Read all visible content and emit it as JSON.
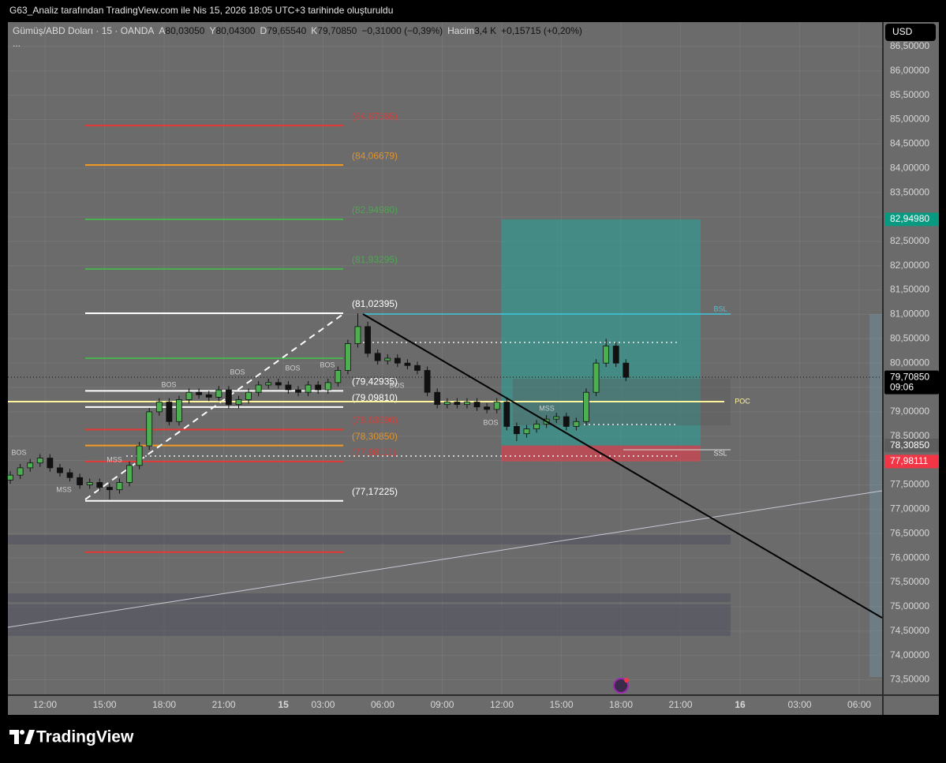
{
  "header": {
    "text": "G63_Analiz tarafından TradingView.com ile Nis 15, 2026 18:05 UTC+3 tarihinde oluşturuldu"
  },
  "legend": {
    "symbol": "Gümüş/ABD Doları · 15 · OANDA",
    "open_key": "A",
    "open": "80,03050",
    "high_key": "Y",
    "high": "80,04300",
    "low_key": "D",
    "low": "79,65540",
    "close_key": "K",
    "close": "79,70850",
    "change": "−0,31000 (−0,39%)",
    "volume_key": "Hacim",
    "volume": "3,4 K",
    "volume_change": "+0,15715 (+0,20%)",
    "more": "..."
  },
  "footer": {
    "logo": "TradingView"
  },
  "chart_data": {
    "type": "candlestick",
    "currency": "USD",
    "xlim": [
      10.13,
      54.15
    ],
    "xticks": [
      {
        "value": 12,
        "label": "12:00"
      },
      {
        "value": 15,
        "label": "15:00"
      },
      {
        "value": 18,
        "label": "18:00"
      },
      {
        "value": 21,
        "label": "21:00"
      },
      {
        "value": 24,
        "label": "15"
      },
      {
        "value": 26,
        "label": "03:00"
      },
      {
        "value": 29,
        "label": "06:00"
      },
      {
        "value": 32,
        "label": "09:00"
      },
      {
        "value": 35,
        "label": "12:00"
      },
      {
        "value": 38,
        "label": "15:00"
      },
      {
        "value": 41,
        "label": "18:00"
      },
      {
        "value": 44,
        "label": "21:00"
      },
      {
        "value": 47,
        "label": "16"
      },
      {
        "value": 50,
        "label": "03:00"
      },
      {
        "value": 53,
        "label": "06:00"
      }
    ],
    "ylim": [
      73.2,
      87.0
    ],
    "yticks": [
      {
        "value": 73.5,
        "label": "73,50000"
      },
      {
        "value": 74,
        "label": "74,00000"
      },
      {
        "value": 74.5,
        "label": "74,50000"
      },
      {
        "value": 75,
        "label": "75,00000"
      },
      {
        "value": 75.5,
        "label": "75,50000"
      },
      {
        "value": 76,
        "label": "76,00000"
      },
      {
        "value": 76.5,
        "label": "76,50000"
      },
      {
        "value": 77,
        "label": "77,00000"
      },
      {
        "value": 77.5,
        "label": "77,50000"
      },
      {
        "value": 78,
        "label": "78,00000"
      },
      {
        "value": 78.5,
        "label": "78,50000"
      },
      {
        "value": 79,
        "label": "79,00000"
      },
      {
        "value": 79.5,
        "label": "79,50000"
      },
      {
        "value": 80,
        "label": "80,00000"
      },
      {
        "value": 80.5,
        "label": "80,50000"
      },
      {
        "value": 81,
        "label": "81,00000"
      },
      {
        "value": 81.5,
        "label": "81,50000"
      },
      {
        "value": 82,
        "label": "82,00000"
      },
      {
        "value": 82.5,
        "label": "82,50000"
      },
      {
        "value": 83,
        "label": "83,00000"
      },
      {
        "value": 83.5,
        "label": "83,50000"
      },
      {
        "value": 84,
        "label": "84,00000"
      },
      {
        "value": 84.5,
        "label": "84,50000"
      },
      {
        "value": 85,
        "label": "85,00000"
      },
      {
        "value": 85.5,
        "label": "85,50000"
      },
      {
        "value": 86,
        "label": "86,00000"
      },
      {
        "value": 86.5,
        "label": "86,50000"
      }
    ],
    "grid": true,
    "up_color": "#4caf50",
    "down_color": "#111111",
    "x": [
      10.25,
      10.75,
      11.25,
      11.75,
      12.25,
      12.75,
      13.25,
      13.75,
      14.25,
      14.75,
      15.25,
      15.75,
      16.25,
      16.75,
      17.25,
      17.75,
      18.25,
      18.75,
      19.25,
      19.75,
      20.25,
      20.75,
      21.25,
      21.75,
      22.25,
      22.75,
      23.25,
      23.75,
      24.25,
      24.75,
      25.25,
      25.75,
      26.25,
      26.75,
      27.25,
      27.75,
      28.25,
      28.75,
      29.25,
      29.75,
      30.25,
      30.75,
      31.25,
      31.75,
      32.25,
      32.75,
      33.25,
      33.75,
      34.25,
      34.75,
      35.25,
      35.75,
      36.25,
      36.75,
      37.25,
      37.75,
      38.25,
      38.75,
      39.25,
      39.75,
      40.25,
      40.75,
      41.25
    ],
    "open": [
      77.6,
      77.7,
      77.85,
      77.95,
      78.05,
      77.85,
      77.75,
      77.65,
      77.5,
      77.55,
      77.45,
      77.4,
      77.55,
      77.9,
      78.3,
      79.0,
      79.2,
      78.8,
      79.25,
      79.4,
      79.35,
      79.3,
      79.45,
      79.15,
      79.25,
      79.4,
      79.55,
      79.6,
      79.55,
      79.45,
      79.4,
      79.55,
      79.45,
      79.6,
      79.85,
      80.4,
      80.75,
      80.2,
      80.05,
      80.1,
      80.0,
      79.95,
      79.85,
      79.4,
      79.15,
      79.2,
      79.15,
      79.2,
      79.1,
      79.05,
      79.2,
      78.7,
      78.55,
      78.65,
      78.75,
      78.85,
      78.9,
      78.7,
      78.8,
      79.4,
      80.0,
      80.35,
      80.0
    ],
    "high": [
      77.78,
      77.93,
      78.03,
      78.13,
      78.13,
      77.93,
      77.83,
      77.73,
      77.63,
      77.63,
      77.53,
      77.63,
      77.98,
      78.38,
      79.08,
      79.28,
      79.28,
      79.33,
      79.48,
      79.48,
      79.43,
      79.53,
      79.53,
      79.33,
      79.48,
      79.63,
      79.68,
      79.68,
      79.63,
      79.53,
      79.63,
      79.63,
      79.68,
      79.93,
      80.48,
      81.02,
      80.85,
      80.28,
      80.18,
      80.18,
      80.08,
      80.03,
      79.93,
      79.48,
      79.28,
      79.28,
      79.28,
      79.28,
      79.18,
      79.28,
      79.28,
      78.78,
      78.73,
      78.83,
      78.93,
      78.98,
      78.98,
      78.88,
      79.48,
      80.08,
      80.5,
      80.43,
      80.08
    ],
    "low": [
      77.52,
      77.62,
      77.77,
      77.87,
      77.77,
      77.67,
      77.57,
      77.42,
      77.42,
      77.37,
      77.2,
      77.32,
      77.47,
      77.82,
      78.22,
      78.92,
      78.72,
      78.72,
      79.17,
      79.27,
      79.22,
      79.22,
      79.07,
      79.07,
      79.17,
      79.32,
      79.47,
      79.47,
      79.37,
      79.32,
      79.32,
      79.37,
      79.37,
      79.52,
      79.77,
      80.32,
      80.12,
      79.97,
      79.97,
      79.92,
      79.87,
      79.77,
      79.32,
      79.07,
      79.07,
      79.07,
      79.07,
      79.02,
      78.97,
      78.97,
      78.62,
      78.4,
      78.47,
      78.57,
      78.67,
      78.77,
      78.62,
      78.62,
      78.72,
      79.32,
      79.92,
      79.92,
      79.63
    ],
    "close": [
      77.7,
      77.85,
      77.95,
      78.05,
      77.85,
      77.75,
      77.65,
      77.5,
      77.55,
      77.45,
      77.4,
      77.55,
      77.9,
      78.3,
      79.0,
      79.2,
      78.8,
      79.25,
      79.4,
      79.35,
      79.3,
      79.45,
      79.15,
      79.25,
      79.4,
      79.55,
      79.6,
      79.55,
      79.45,
      79.4,
      79.55,
      79.45,
      79.6,
      79.85,
      80.4,
      80.75,
      80.2,
      80.05,
      80.1,
      80.0,
      79.95,
      79.85,
      79.4,
      79.15,
      79.2,
      79.15,
      79.2,
      79.1,
      79.05,
      79.2,
      78.7,
      78.55,
      78.65,
      78.75,
      78.85,
      78.9,
      78.7,
      78.8,
      79.4,
      80.0,
      80.35,
      80.0,
      79.7085
    ],
    "levels": [
      {
        "value": 84.87565,
        "label": "(84,87565)",
        "color": "#e53935"
      },
      {
        "value": 84.06679,
        "label": "(84,06679)",
        "color": "#f59a23"
      },
      {
        "value": 82.9498,
        "label": "(82,94980)",
        "color": "#4caf50"
      },
      {
        "value": 81.93295,
        "label": "(81,93295)",
        "color": "#4caf50"
      },
      {
        "value": 81.02395,
        "label": "(81,02395)",
        "color": "#ffffff"
      },
      {
        "value": 80.1,
        "color": "#4caf50"
      },
      {
        "value": 79.42935,
        "label": "(79,42935)",
        "color": "#ffffff"
      },
      {
        "value": 79.0981,
        "label": "(79,09810)",
        "color": "#ffffff"
      },
      {
        "value": 78.6359,
        "label": "(78,63590)",
        "color": "#e53935"
      },
      {
        "value": 78.3085,
        "label": "(78,30850)",
        "color": "#f59a23"
      },
      {
        "value": 77.98111,
        "label": "(77,98111)",
        "color": "#e53935"
      },
      {
        "value": 77.17225,
        "label": "(77,17225)",
        "color": "#ffffff"
      },
      {
        "value": 76.12,
        "color": "#e53935"
      }
    ],
    "position": {
      "target": 82.9498,
      "entry": 78.3085,
      "stop": 77.98111
    },
    "annotations": [
      "BOS",
      "MSS",
      "MSS",
      "BOS",
      "BOS",
      "BOS",
      "BOS",
      "BOS",
      "MSS",
      "BOS",
      "BSL",
      "SSL",
      "POC"
    ],
    "price_badges": [
      {
        "value": 82.9498,
        "label": "82,94980",
        "color": "#089981"
      },
      {
        "value": 79.7085,
        "label": "79,70850",
        "color": "#000000",
        "countdown": "09:06"
      },
      {
        "value": 78.3085,
        "label": "78,30850",
        "color": "#5d5d5d"
      },
      {
        "value": 77.98111,
        "label": "77,98111",
        "color": "#f23645"
      }
    ]
  }
}
